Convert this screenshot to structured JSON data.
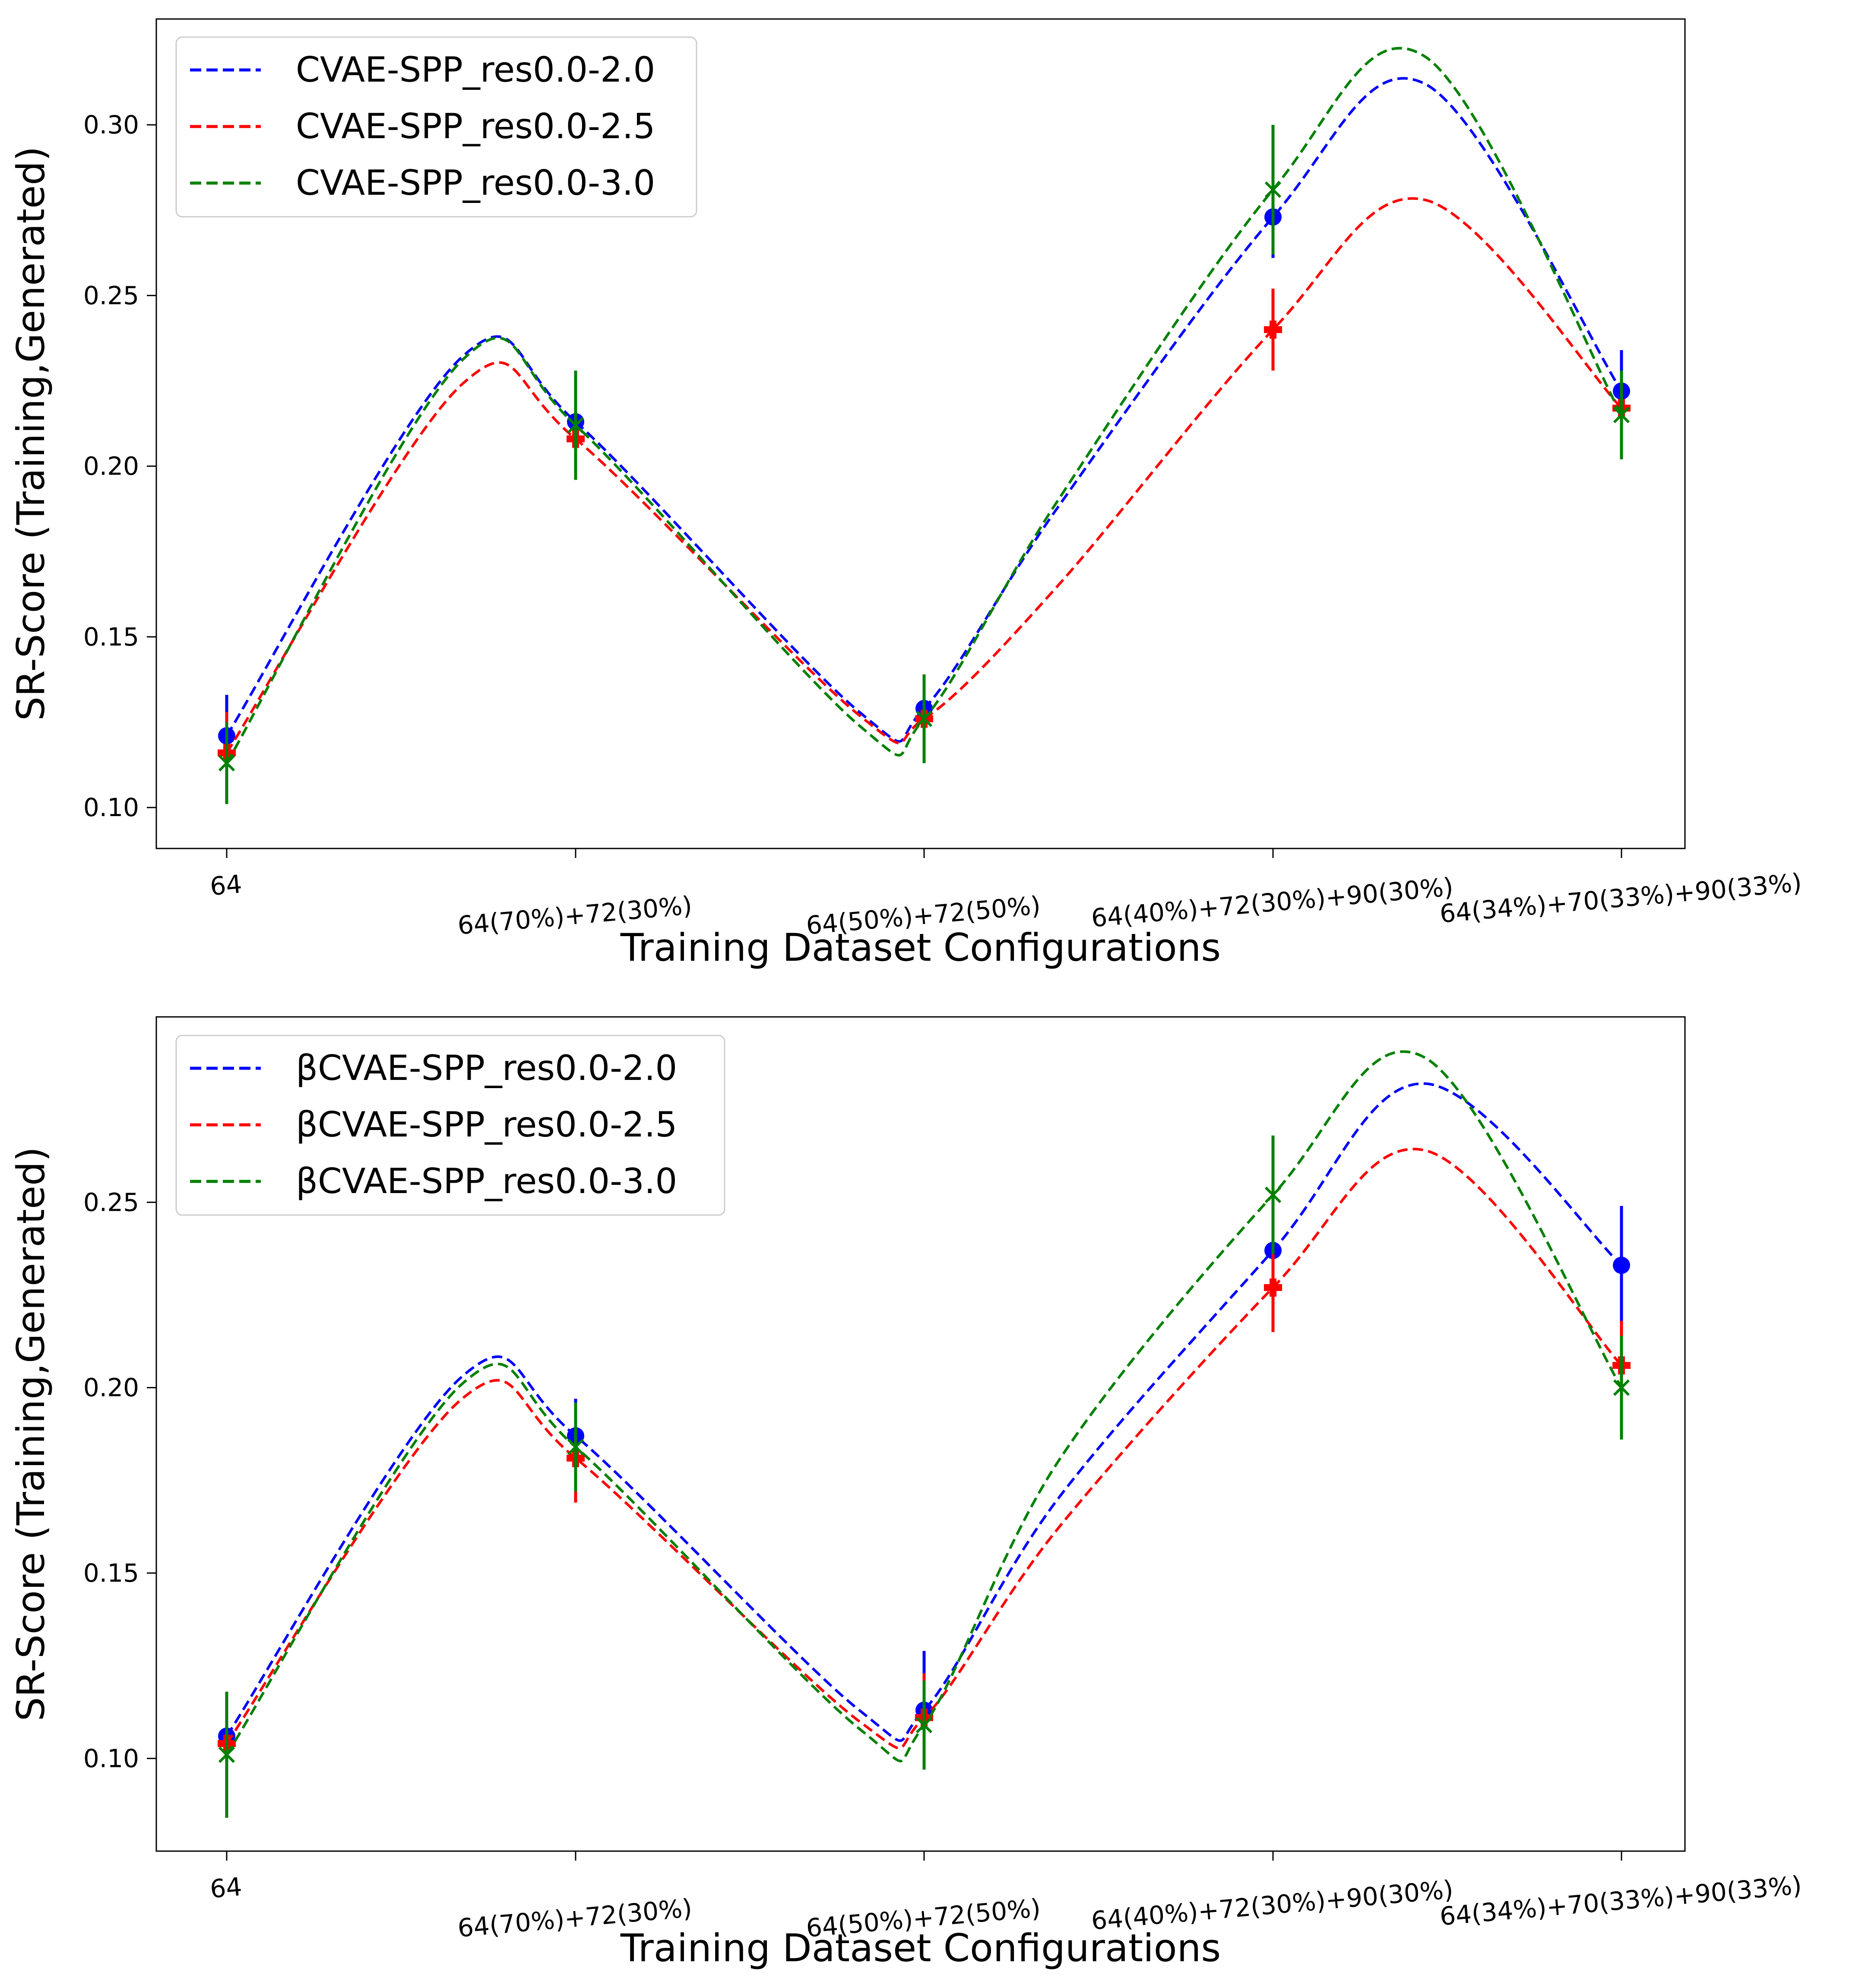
{
  "chart_data": [
    {
      "type": "line",
      "name": "top-panel",
      "title": "",
      "xlabel": "Training Dataset Configurations",
      "ylabel": "SR-Score (Training,Generated)",
      "categories": [
        "64",
        "64(70%)+72(30%)",
        "64(50%)+72(50%)",
        "64(40%)+72(30%)+90(30%)",
        "64(34%)+70(33%)+90(33%)"
      ],
      "ylim": [
        0.088,
        0.331
      ],
      "yticks": [
        0.1,
        0.15,
        0.2,
        0.25,
        0.3
      ],
      "ytick_labels": [
        "0.10",
        "0.15",
        "0.20",
        "0.25",
        "0.30"
      ],
      "legend": "top-left",
      "grid": false,
      "series": [
        {
          "name": "CVAE-SPP_res0.0-2.0",
          "color": "#0000ff",
          "marker": "circle",
          "values": [
            0.121,
            0.213,
            0.129,
            0.273,
            0.222
          ],
          "errors": [
            0.012,
            0.01,
            0.008,
            0.012,
            0.012
          ],
          "curve": [
            0.121,
            0.232,
            0.213,
            0.128,
            0.129,
            0.188,
            0.273,
            0.312,
            0.222
          ]
        },
        {
          "name": "CVAE-SPP_res0.0-2.5",
          "color": "#ff0000",
          "marker": "plus",
          "values": [
            0.116,
            0.208,
            0.126,
            0.24,
            0.217
          ],
          "errors": [
            0.012,
            0.012,
            0.01,
            0.012,
            0.01
          ],
          "curve": [
            0.116,
            0.224,
            0.208,
            0.127,
            0.126,
            0.165,
            0.24,
            0.278,
            0.217
          ]
        },
        {
          "name": "CVAE-SPP_res0.0-3.0",
          "color": "#008000",
          "marker": "x",
          "values": [
            0.113,
            0.212,
            0.126,
            0.281,
            0.215
          ],
          "errors": [
            0.012,
            0.016,
            0.013,
            0.019,
            0.013
          ],
          "curve": [
            0.113,
            0.231,
            0.212,
            0.124,
            0.126,
            0.19,
            0.281,
            0.32,
            0.215
          ]
        }
      ]
    },
    {
      "type": "line",
      "name": "bottom-panel",
      "title": "",
      "xlabel": "Training Dataset Configurations",
      "ylabel": "SR-Score (Training,Generated)",
      "categories": [
        "64",
        "64(70%)+72(30%)",
        "64(50%)+72(50%)",
        "64(40%)+72(30%)+90(30%)",
        "64(34%)+70(33%)+90(33%)"
      ],
      "ylim": [
        0.075,
        0.3
      ],
      "yticks": [
        0.1,
        0.15,
        0.2,
        0.25
      ],
      "ytick_labels": [
        "0.10",
        "0.15",
        "0.20",
        "0.25"
      ],
      "legend": "top-left",
      "grid": false,
      "series": [
        {
          "name": "βCVAE-SPP_res0.0-2.0",
          "color": "#0000ff",
          "marker": "circle",
          "values": [
            0.106,
            0.187,
            0.113,
            0.237,
            0.233
          ],
          "errors": [
            0.01,
            0.01,
            0.016,
            0.013,
            0.016
          ],
          "curve": [
            0.106,
            0.203,
            0.187,
            0.113,
            0.113,
            0.17,
            0.237,
            0.282,
            0.233
          ]
        },
        {
          "name": "βCVAE-SPP_res0.0-2.5",
          "color": "#ff0000",
          "marker": "plus",
          "values": [
            0.104,
            0.181,
            0.111,
            0.227,
            0.206
          ],
          "errors": [
            0.01,
            0.012,
            0.012,
            0.012,
            0.012
          ],
          "curve": [
            0.104,
            0.197,
            0.181,
            0.11,
            0.111,
            0.162,
            0.227,
            0.264,
            0.206
          ]
        },
        {
          "name": "βCVAE-SPP_res0.0-3.0",
          "color": "#008000",
          "marker": "x",
          "values": [
            0.101,
            0.184,
            0.109,
            0.252,
            0.2
          ],
          "errors": [
            0.017,
            0.012,
            0.012,
            0.016,
            0.014
          ],
          "curve": [
            0.101,
            0.201,
            0.184,
            0.108,
            0.109,
            0.18,
            0.252,
            0.289,
            0.2
          ]
        }
      ]
    }
  ]
}
